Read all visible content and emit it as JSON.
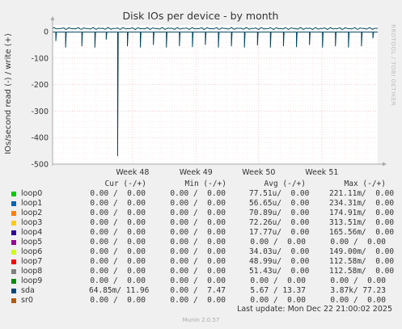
{
  "chart_data": {
    "type": "line",
    "title": "Disk IOs per device - by month",
    "ylabel": "IOs/second read (-) / write (+)",
    "side_text": "RRDTOOL / TOBI OETIKER",
    "ylim": [
      -500,
      25
    ],
    "y_ticks": [
      0,
      -100,
      -200,
      -300,
      -400,
      -500
    ],
    "y_tick_labels": [
      "0",
      "-100",
      "-200",
      "-300",
      "-400",
      "-500"
    ],
    "x_ticks": [
      "Week 48",
      "Week 49",
      "Week 50",
      "Week 51"
    ],
    "x_tick_positions": [
      0.246,
      0.441,
      0.634,
      0.828
    ],
    "series": [
      {
        "name": "sda",
        "color": "#00455f",
        "write_baseline": 12,
        "read_baseline": -2,
        "read_dips": [
          [
            0.01,
            -35
          ],
          [
            0.04,
            -60
          ],
          [
            0.09,
            -55
          ],
          [
            0.13,
            -60
          ],
          [
            0.165,
            -30
          ],
          [
            0.2,
            -470
          ],
          [
            0.23,
            -55
          ],
          [
            0.27,
            -60
          ],
          [
            0.31,
            -50
          ],
          [
            0.35,
            -60
          ],
          [
            0.39,
            -55
          ],
          [
            0.43,
            -58
          ],
          [
            0.47,
            -50
          ],
          [
            0.51,
            -60
          ],
          [
            0.55,
            -55
          ],
          [
            0.59,
            -60
          ],
          [
            0.63,
            -52
          ],
          [
            0.67,
            -60
          ],
          [
            0.71,
            -55
          ],
          [
            0.75,
            -58
          ],
          [
            0.79,
            -50
          ],
          [
            0.83,
            -60
          ],
          [
            0.87,
            -55
          ],
          [
            0.91,
            -60
          ],
          [
            0.95,
            -55
          ],
          [
            0.985,
            -25
          ]
        ]
      }
    ],
    "legend_headers": {
      "cur": "Cur (-/+)",
      "min": "Min (-/+)",
      "avg": "Avg (-/+)",
      "max": "Max (-/+)"
    },
    "legend": [
      {
        "name": "loop0",
        "color": "#00cc00",
        "cur": "0.00 /  0.00",
        "min": "0.00 /  0.00",
        "avg": "77.51u/  0.00",
        "max": "221.11m/  0.00"
      },
      {
        "name": "loop1",
        "color": "#0066b3",
        "cur": "0.00 /  0.00",
        "min": "0.00 /  0.00",
        "avg": "56.65u/  0.00",
        "max": "234.31m/  0.00"
      },
      {
        "name": "loop2",
        "color": "#ff8000",
        "cur": "0.00 /  0.00",
        "min": "0.00 /  0.00",
        "avg": "70.89u/  0.00",
        "max": "174.91m/  0.00"
      },
      {
        "name": "loop3",
        "color": "#ffcc00",
        "cur": "0.00 /  0.00",
        "min": "0.00 /  0.00",
        "avg": "72.26u/  0.00",
        "max": "313.51m/  0.00"
      },
      {
        "name": "loop4",
        "color": "#330099",
        "cur": "0.00 /  0.00",
        "min": "0.00 /  0.00",
        "avg": "17.77u/  0.00",
        "max": "165.56m/  0.00"
      },
      {
        "name": "loop5",
        "color": "#990099",
        "cur": "0.00 /  0.00",
        "min": "0.00 /  0.00",
        "avg": "0.00 /  0.00",
        "max": "0.00 /  0.00"
      },
      {
        "name": "loop6",
        "color": "#ccff00",
        "cur": "0.00 /  0.00",
        "min": "0.00 /  0.00",
        "avg": "34.03u/  0.00",
        "max": "149.00m/  0.00"
      },
      {
        "name": "loop7",
        "color": "#ff0000",
        "cur": "0.00 /  0.00",
        "min": "0.00 /  0.00",
        "avg": "48.99u/  0.00",
        "max": "112.58m/  0.00"
      },
      {
        "name": "loop8",
        "color": "#808080",
        "cur": "0.00 /  0.00",
        "min": "0.00 /  0.00",
        "avg": "51.43u/  0.00",
        "max": "112.58m/  0.00"
      },
      {
        "name": "loop9",
        "color": "#008f00",
        "cur": "0.00 /  0.00",
        "min": "0.00 /  0.00",
        "avg": "0.00 /  0.00",
        "max": "0.00 /  0.00"
      },
      {
        "name": "sda",
        "color": "#00487d",
        "cur": "64.85m/ 11.96",
        "min": "0.00 /  7.47",
        "avg": "5.67 / 13.37",
        "max": "3.87k/ 77.23"
      },
      {
        "name": "sr0",
        "color": "#b35a00",
        "cur": "0.00 /  0.00",
        "min": "0.00 /  0.00",
        "avg": "0.00 /  0.00",
        "max": "0.00 /  0.00"
      }
    ]
  },
  "footer": {
    "last_update": "Last update: Mon Dec 22 21:00:02 2025",
    "munin": "Munin 2.0.57"
  }
}
